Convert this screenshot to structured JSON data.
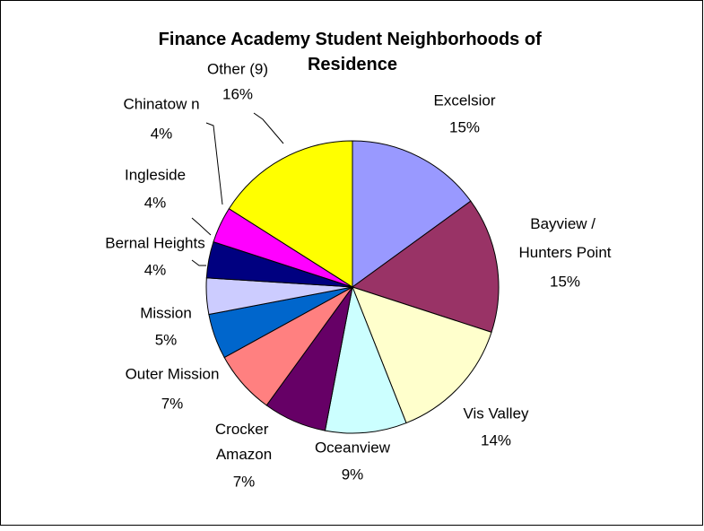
{
  "chart_data": {
    "type": "pie",
    "title": "Finance Academy Student Neighborhoods of Residence",
    "categories": [
      "Excelsior",
      "Bayview / Hunters Point",
      "Vis Valley",
      "Oceanview",
      "Crocker Amazon",
      "Outer Mission",
      "Mission",
      "Bernal Heights",
      "Ingleside",
      "Chinatow n",
      "Other (9)"
    ],
    "values": [
      15,
      15,
      14,
      9,
      7,
      7,
      5,
      4,
      4,
      4,
      16
    ],
    "value_labels": [
      "15%",
      "15%",
      "14%",
      "9%",
      "7%",
      "7%",
      "5%",
      "4%",
      "4%",
      "4%",
      "16%"
    ],
    "colors": [
      "#9999ff",
      "#993366",
      "#ffffcc",
      "#ccffff",
      "#660066",
      "#ff8080",
      "#0066cc",
      "#ccccff",
      "#000080",
      "#ff00ff",
      "#ffff00"
    ]
  }
}
